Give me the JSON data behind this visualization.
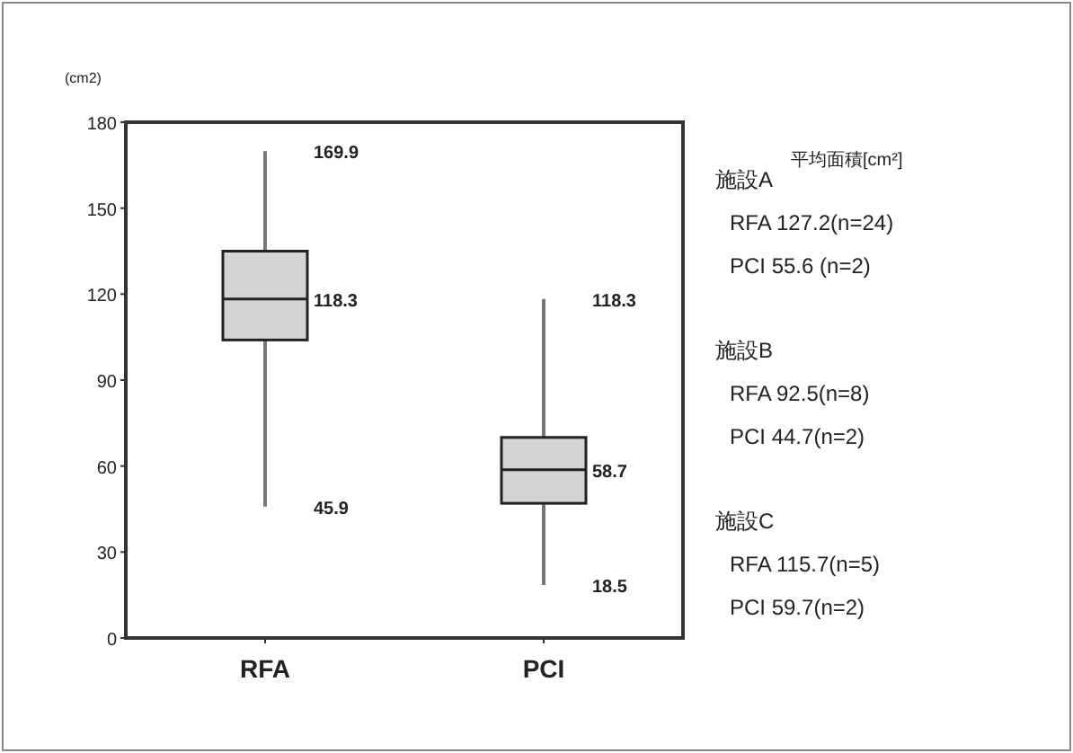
{
  "chart_data": {
    "type": "box",
    "ylabel": "(cm2)",
    "categories": [
      "RFA",
      "PCI"
    ],
    "boxes": [
      {
        "low": 45.9,
        "q1": 104,
        "median": 118.3,
        "q3": 135,
        "high": 169.9
      },
      {
        "low": 18.5,
        "q1": 47,
        "median": 58.7,
        "q3": 70,
        "high": 118.3
      }
    ],
    "color": "#d4d4d4",
    "ylim": [
      0,
      180
    ],
    "yticks": [
      0,
      30,
      60,
      90,
      120,
      150,
      180
    ],
    "grid": false,
    "annotations": [
      {
        "text": "169.9",
        "x": "RFA",
        "y": 169.9
      },
      {
        "text": "118.3",
        "x": "RFA",
        "y": 118.3
      },
      {
        "text": "45.9",
        "x": "RFA",
        "y": 45.9
      },
      {
        "text": "118.3",
        "x": "PCI",
        "y": 118.3
      },
      {
        "text": "58.7",
        "x": "PCI",
        "y": 58.7
      },
      {
        "text": "18.5",
        "x": "PCI",
        "y": 18.5
      },
      "平均面積[cm²]",
      "施設A",
      "RFA  127.2(n=24)",
      "PCI    55.6 (n=2)",
      "施設B",
      "RFA  92.5(n=8)",
      "PCI  44.7(n=2)",
      "施設C",
      "RFA 115.7(n=5)",
      "PCI  59.7(n=2)"
    ]
  }
}
